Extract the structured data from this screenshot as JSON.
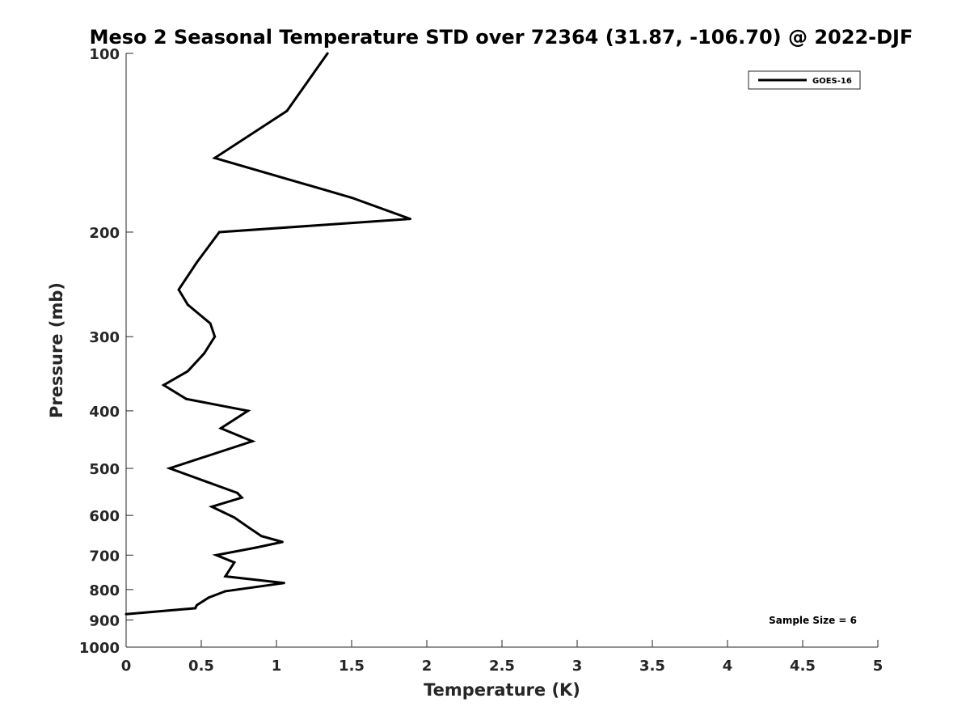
{
  "chart_data": {
    "type": "line",
    "title": "Meso 2 Seasonal Temperature STD over 72364 (31.87, -106.70) @ 2022-DJF",
    "xlabel": "Temperature (K)",
    "ylabel": "Pressure (mb)",
    "xlim": [
      0,
      5
    ],
    "ylim": [
      100,
      1000
    ],
    "y_scale": "log",
    "y_reversed": true,
    "x_ticks": [
      "0",
      "0.5",
      "1",
      "1.5",
      "2",
      "2.5",
      "3",
      "3.5",
      "4",
      "4.5",
      "5"
    ],
    "y_ticks": [
      "100",
      "200",
      "300",
      "400",
      "500",
      "600",
      "700",
      "800",
      "900",
      "1000"
    ],
    "grid": false,
    "legend": {
      "placement": "top-right",
      "entries": [
        "GOES-16"
      ]
    },
    "annotation": "Sample Size = 6",
    "series": [
      {
        "name": "GOES-16",
        "color": "#000000",
        "points": [
          {
            "x": 1.34,
            "p": 100
          },
          {
            "x": 1.07,
            "p": 125
          },
          {
            "x": 0.59,
            "p": 150
          },
          {
            "x": 1.5,
            "p": 175
          },
          {
            "x": 1.89,
            "p": 190
          },
          {
            "x": 0.62,
            "p": 200
          },
          {
            "x": 0.47,
            "p": 225
          },
          {
            "x": 0.35,
            "p": 250
          },
          {
            "x": 0.41,
            "p": 265
          },
          {
            "x": 0.56,
            "p": 285
          },
          {
            "x": 0.59,
            "p": 300
          },
          {
            "x": 0.52,
            "p": 320
          },
          {
            "x": 0.41,
            "p": 343
          },
          {
            "x": 0.25,
            "p": 362
          },
          {
            "x": 0.4,
            "p": 382
          },
          {
            "x": 0.81,
            "p": 400
          },
          {
            "x": 0.63,
            "p": 428
          },
          {
            "x": 0.84,
            "p": 450
          },
          {
            "x": 0.29,
            "p": 500
          },
          {
            "x": 0.74,
            "p": 550
          },
          {
            "x": 0.77,
            "p": 560
          },
          {
            "x": 0.57,
            "p": 580
          },
          {
            "x": 0.72,
            "p": 605
          },
          {
            "x": 0.82,
            "p": 630
          },
          {
            "x": 0.9,
            "p": 650
          },
          {
            "x": 1.04,
            "p": 665
          },
          {
            "x": 0.86,
            "p": 680
          },
          {
            "x": 0.6,
            "p": 700
          },
          {
            "x": 0.72,
            "p": 720
          },
          {
            "x": 0.66,
            "p": 760
          },
          {
            "x": 1.05,
            "p": 780
          },
          {
            "x": 0.66,
            "p": 805
          },
          {
            "x": 0.55,
            "p": 825
          },
          {
            "x": 0.47,
            "p": 850
          },
          {
            "x": 0.46,
            "p": 860
          },
          {
            "x": 0.0,
            "p": 880
          }
        ]
      }
    ]
  }
}
